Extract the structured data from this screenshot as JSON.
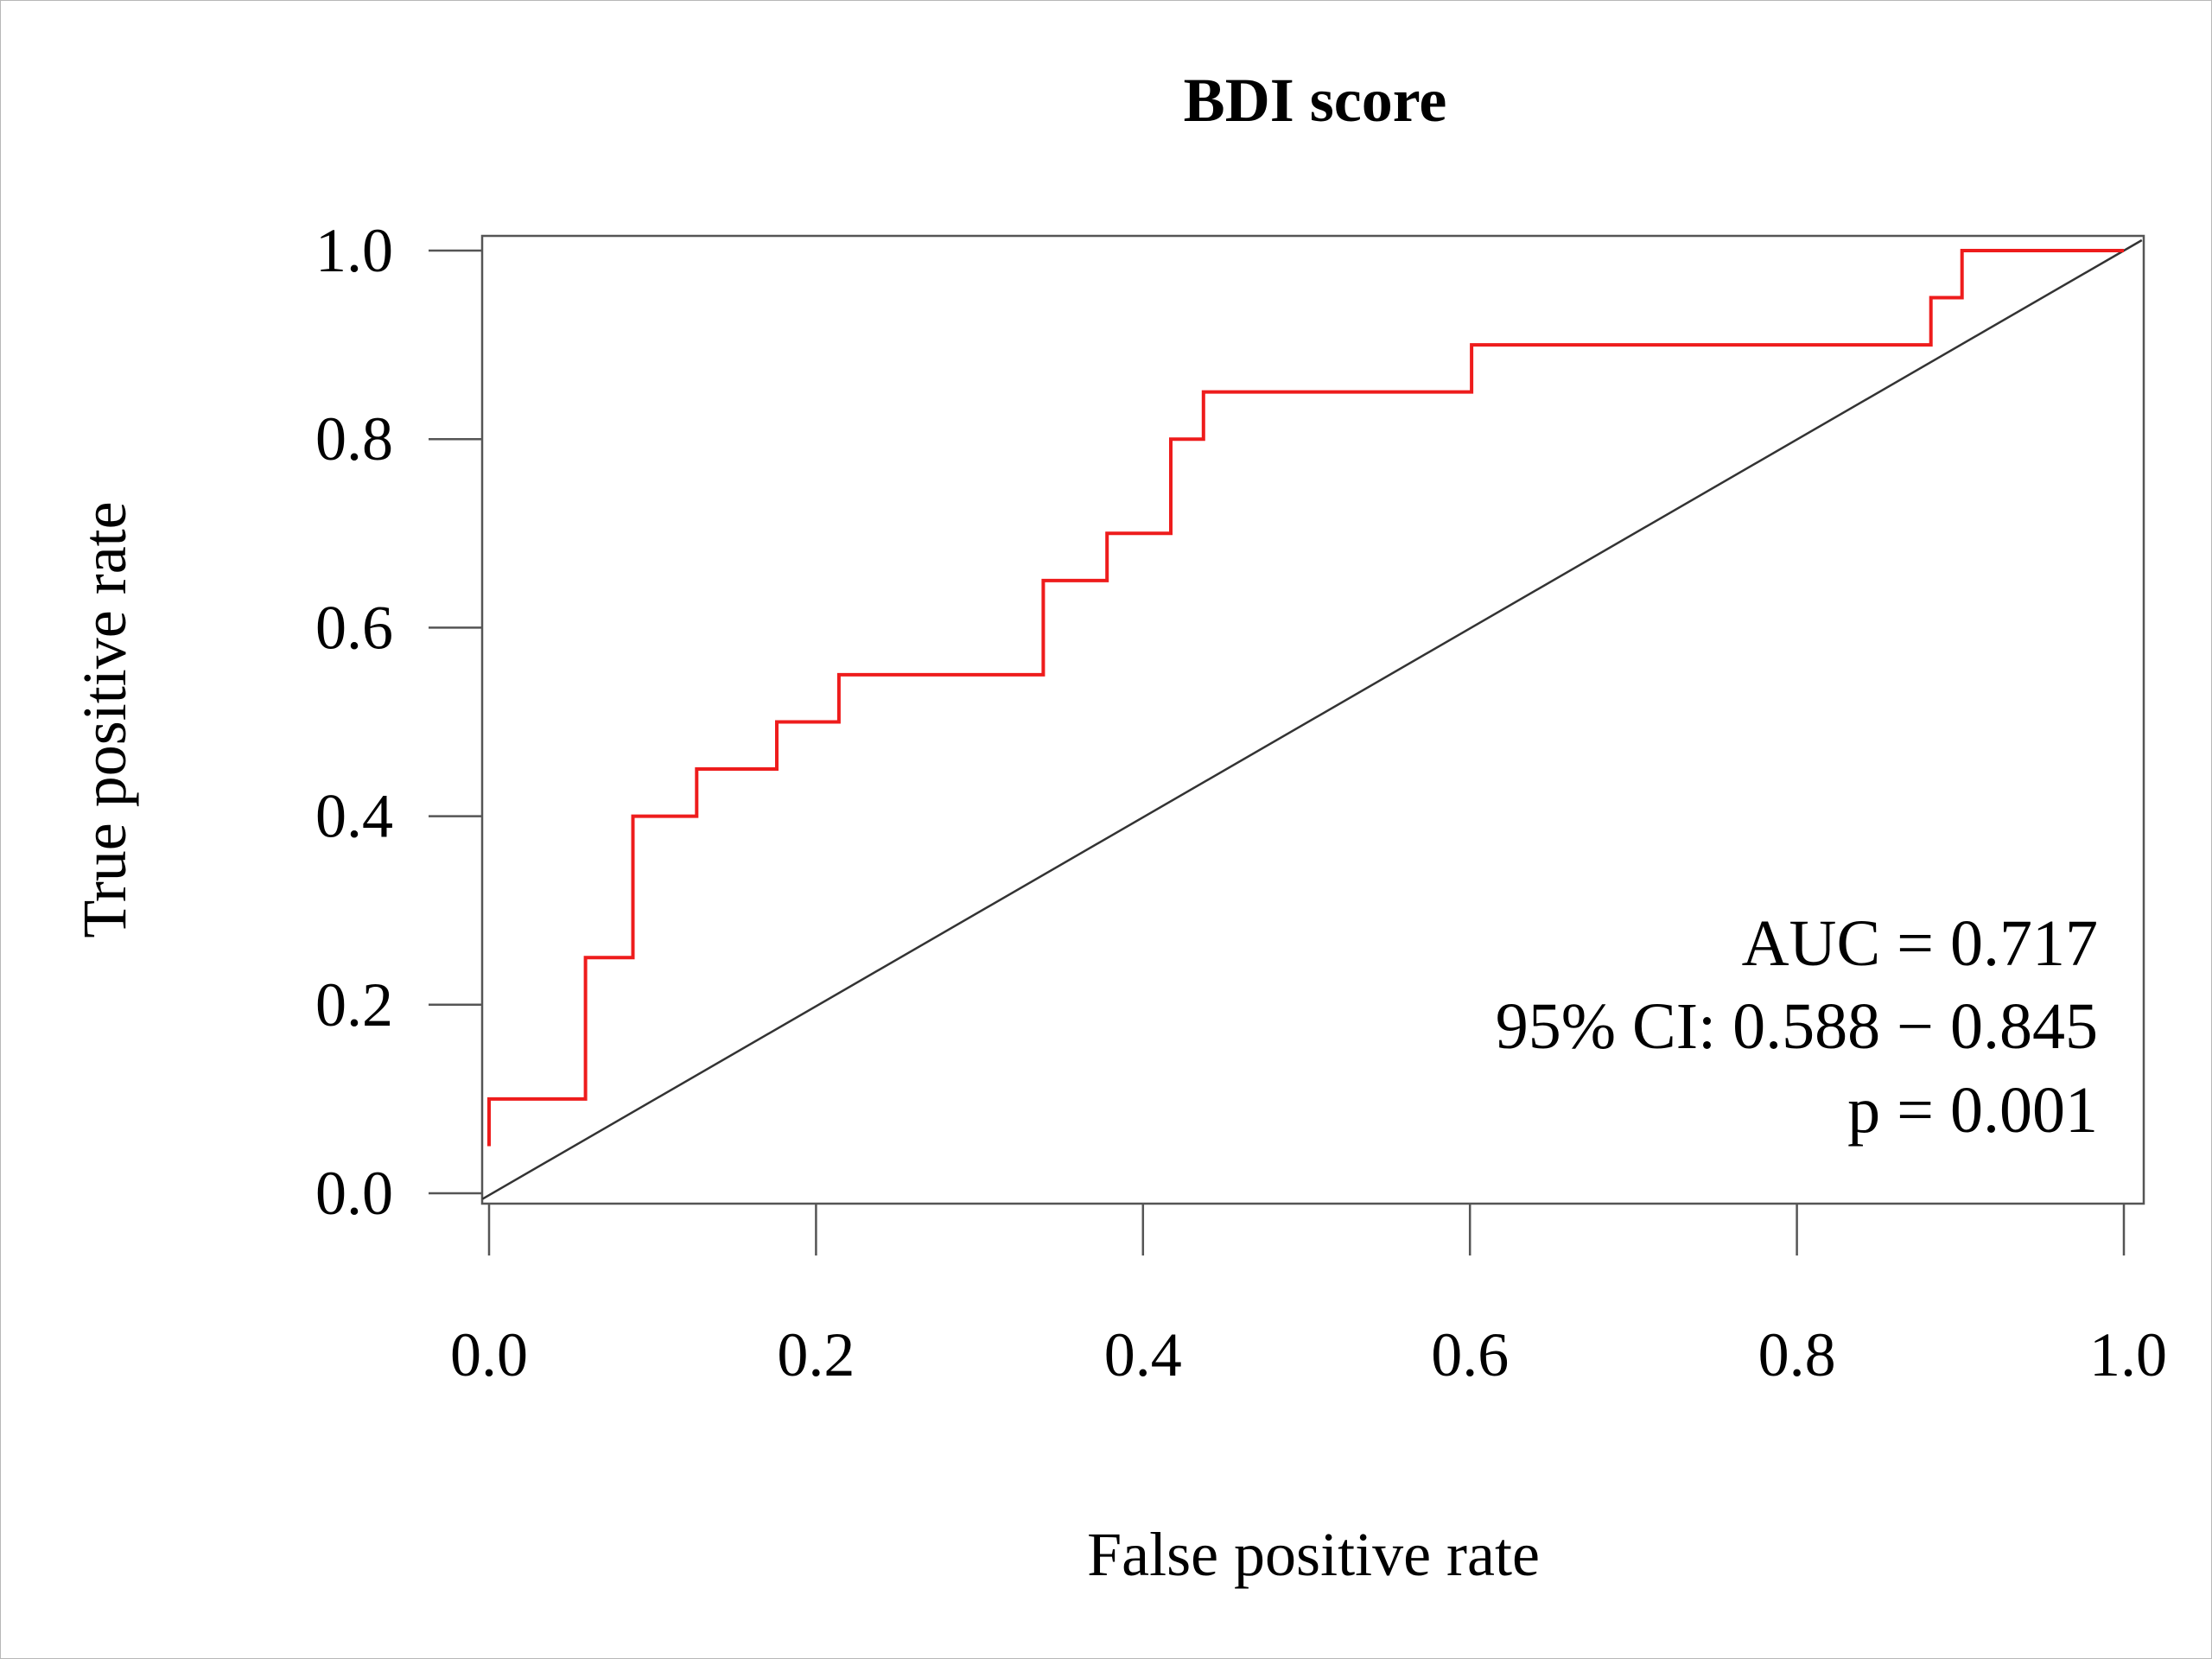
{
  "chart_data": {
    "type": "line",
    "title": "BDI score",
    "xlabel": "False positive rate",
    "ylabel": "True positive rate",
    "xlim": [
      0,
      1
    ],
    "ylim": [
      0,
      1
    ],
    "x_ticks": [
      "0.0",
      "0.2",
      "0.4",
      "0.6",
      "0.8",
      "1.0"
    ],
    "y_ticks": [
      "0.0",
      "0.2",
      "0.4",
      "0.6",
      "0.8",
      "1.0"
    ],
    "grid": false,
    "colors": {
      "roc": "#ee1c1c",
      "reference": "#333333",
      "axes": "#555555"
    },
    "series": [
      {
        "x": [
          0.0,
          0.0,
          0.059,
          0.059,
          0.088,
          0.088,
          0.127,
          0.127,
          0.176,
          0.176,
          0.214,
          0.214,
          0.339,
          0.339,
          0.378,
          0.378,
          0.417,
          0.417,
          0.437,
          0.437,
          0.601,
          0.601,
          0.882,
          0.882,
          0.901,
          0.901,
          1.0
        ],
        "y": [
          0.05,
          0.1,
          0.1,
          0.25,
          0.25,
          0.4,
          0.4,
          0.45,
          0.45,
          0.5,
          0.5,
          0.55,
          0.55,
          0.65,
          0.65,
          0.7,
          0.7,
          0.8,
          0.8,
          0.85,
          0.85,
          0.9,
          0.9,
          0.95,
          0.95,
          1.0,
          1.0
        ]
      }
    ],
    "reference_line": {
      "x": [
        0,
        1
      ],
      "y": [
        0,
        1
      ]
    },
    "annotations": [
      "AUC = 0.717",
      "95% CI: 0.588 − 0.845",
      "p = 0.001"
    ]
  }
}
